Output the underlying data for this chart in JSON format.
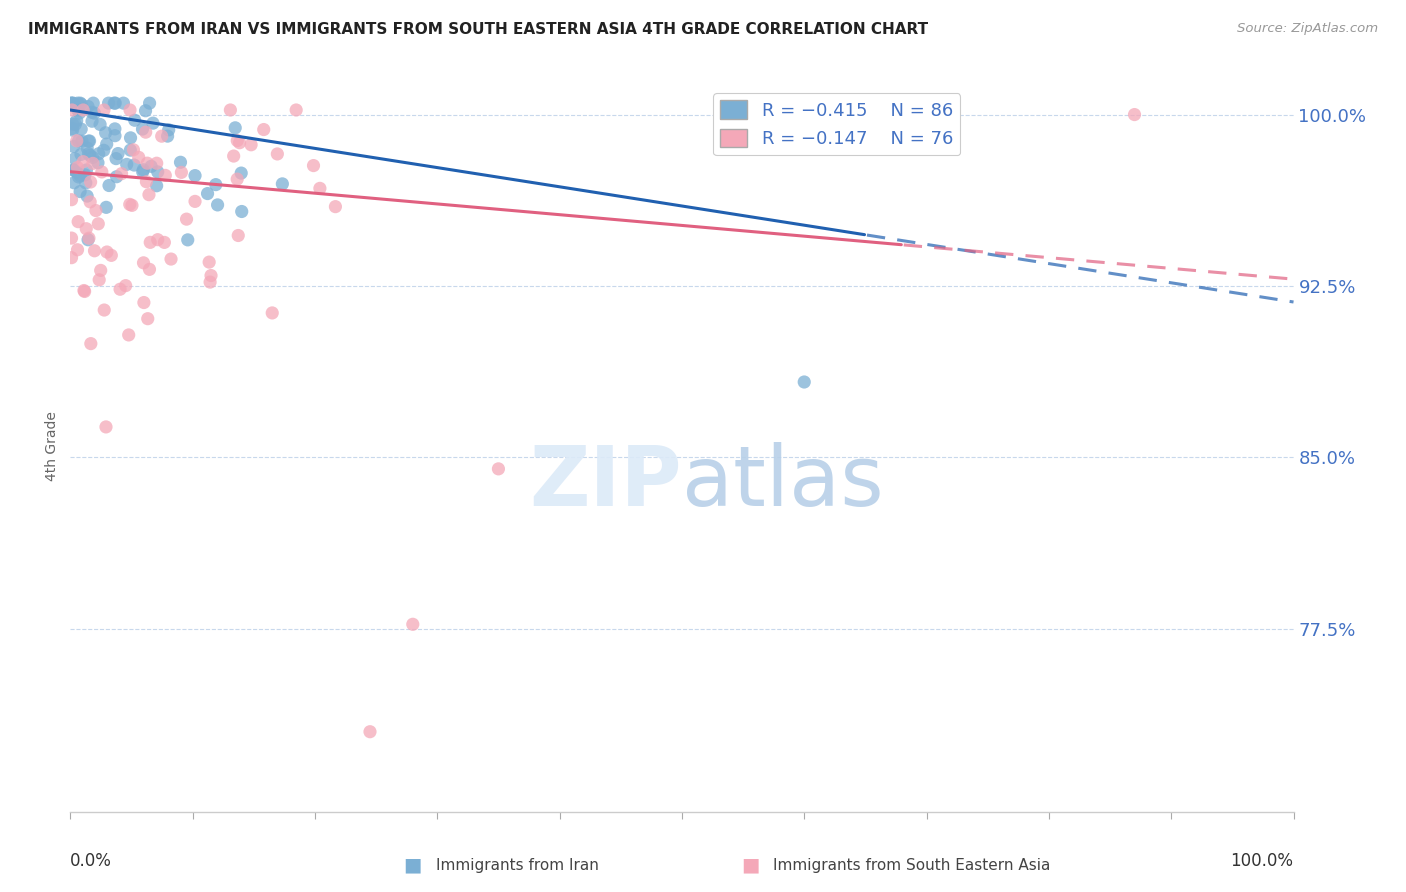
{
  "title": "IMMIGRANTS FROM IRAN VS IMMIGRANTS FROM SOUTH EASTERN ASIA 4TH GRADE CORRELATION CHART",
  "source": "Source: ZipAtlas.com",
  "ylabel": "4th Grade",
  "blue_color": "#7bafd4",
  "pink_color": "#f4a8b8",
  "blue_line_color": "#2060b0",
  "pink_line_color": "#e06080",
  "footer_blue": "Immigrants from Iran",
  "footer_pink": "Immigrants from South Eastern Asia",
  "xlim": [
    0.0,
    1.0
  ],
  "ylim": [
    0.695,
    1.015
  ],
  "yticks": [
    0.775,
    0.85,
    0.925,
    1.0
  ],
  "ytick_labels": [
    "77.5%",
    "85.0%",
    "92.5%",
    "100.0%"
  ],
  "blue_line_x0": 0.0,
  "blue_line_y0": 1.002,
  "blue_line_x1": 1.0,
  "blue_line_y1": 0.918,
  "blue_line_solid_end": 0.65,
  "pink_line_x0": 0.0,
  "pink_line_y0": 0.975,
  "pink_line_x1": 1.0,
  "pink_line_y1": 0.928,
  "pink_line_solid_end": 0.68,
  "grid_color": "#c8d8ec",
  "grid_linestyle": "--",
  "tick_color": "#4472c4",
  "watermark_color": "#dceaf8",
  "bottom_border_color": "#cccccc"
}
